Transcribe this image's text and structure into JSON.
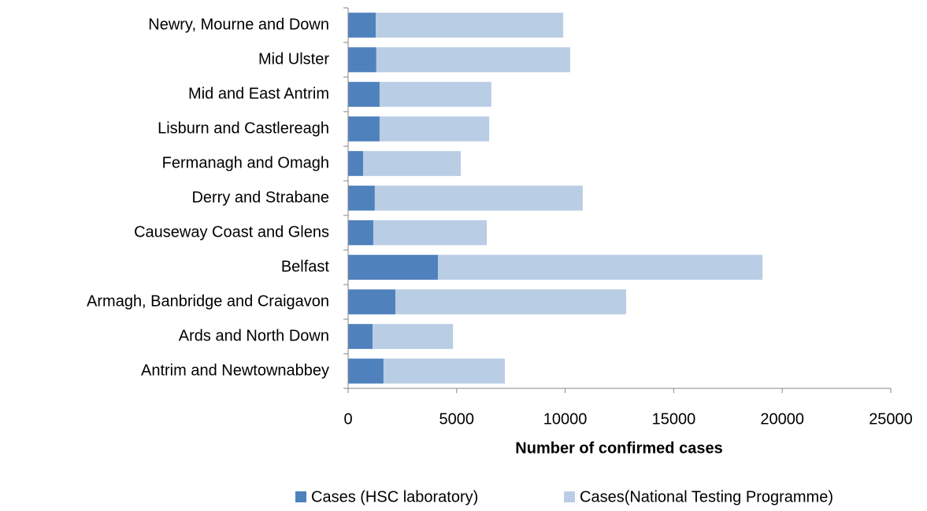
{
  "chart_data": {
    "type": "stacked-bar-horizontal",
    "categories": [
      "Newry, Mourne and Down",
      "Mid Ulster",
      "Mid and East Antrim",
      "Lisburn and Castlereagh",
      "Fermanagh and Omagh",
      "Derry and Strabane",
      "Causeway Coast and Glens",
      "Belfast",
      "Armagh, Banbridge and Craigavon",
      "Ards and North Down",
      "Antrim and Newtownabbey"
    ],
    "series": [
      {
        "name": "Cases (HSC laboratory)",
        "color": "#4f81bd",
        "values": [
          1270,
          1300,
          1450,
          1450,
          690,
          1230,
          1160,
          4140,
          2180,
          1130,
          1630
        ]
      },
      {
        "name": "Cases(National Testing Programme)",
        "color": "#b9cde5",
        "values": [
          8640,
          8930,
          5150,
          5050,
          4500,
          9580,
          5230,
          14950,
          10630,
          3700,
          5590
        ]
      }
    ],
    "x_label": "Number of confirmed cases",
    "xlim": [
      0,
      25000
    ],
    "xticks": [
      0,
      5000,
      10000,
      15000,
      20000,
      25000
    ],
    "grid": false,
    "legend": "bottom"
  }
}
